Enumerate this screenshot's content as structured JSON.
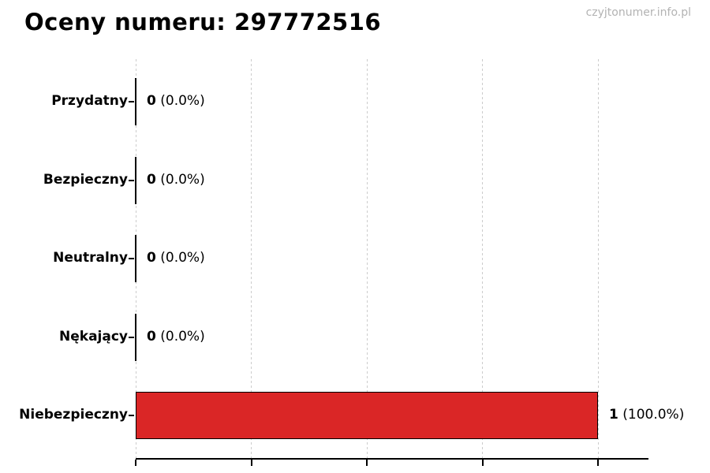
{
  "page": {
    "watermark": "czyjtonumer.info.pl"
  },
  "chart_data": {
    "type": "bar",
    "orientation": "horizontal",
    "title": "Oceny numeru: 297772516",
    "categories": [
      "Przydatny",
      "Bezpieczny",
      "Neutralny",
      "Nękający",
      "Niebezpieczny"
    ],
    "values": [
      0,
      0,
      0,
      0,
      1
    ],
    "value_labels": [
      "0",
      "0",
      "0",
      "0",
      "1"
    ],
    "percent_labels": [
      "(0.0%)",
      "(0.0%)",
      "(0.0%)",
      "(0.0%)",
      "(100.0%)"
    ],
    "total": 1,
    "bar_color": "#da2626",
    "bar_edge_color": "#000000",
    "grid_color": "#cccccc",
    "axis_color": "#000000",
    "xlim": [
      0,
      1.11
    ],
    "gridline_values": [
      0,
      0.25,
      0.5,
      0.75,
      1.0
    ],
    "grid_style": "dashed-vertical",
    "legend": "none",
    "xlabel": "",
    "ylabel": ""
  }
}
